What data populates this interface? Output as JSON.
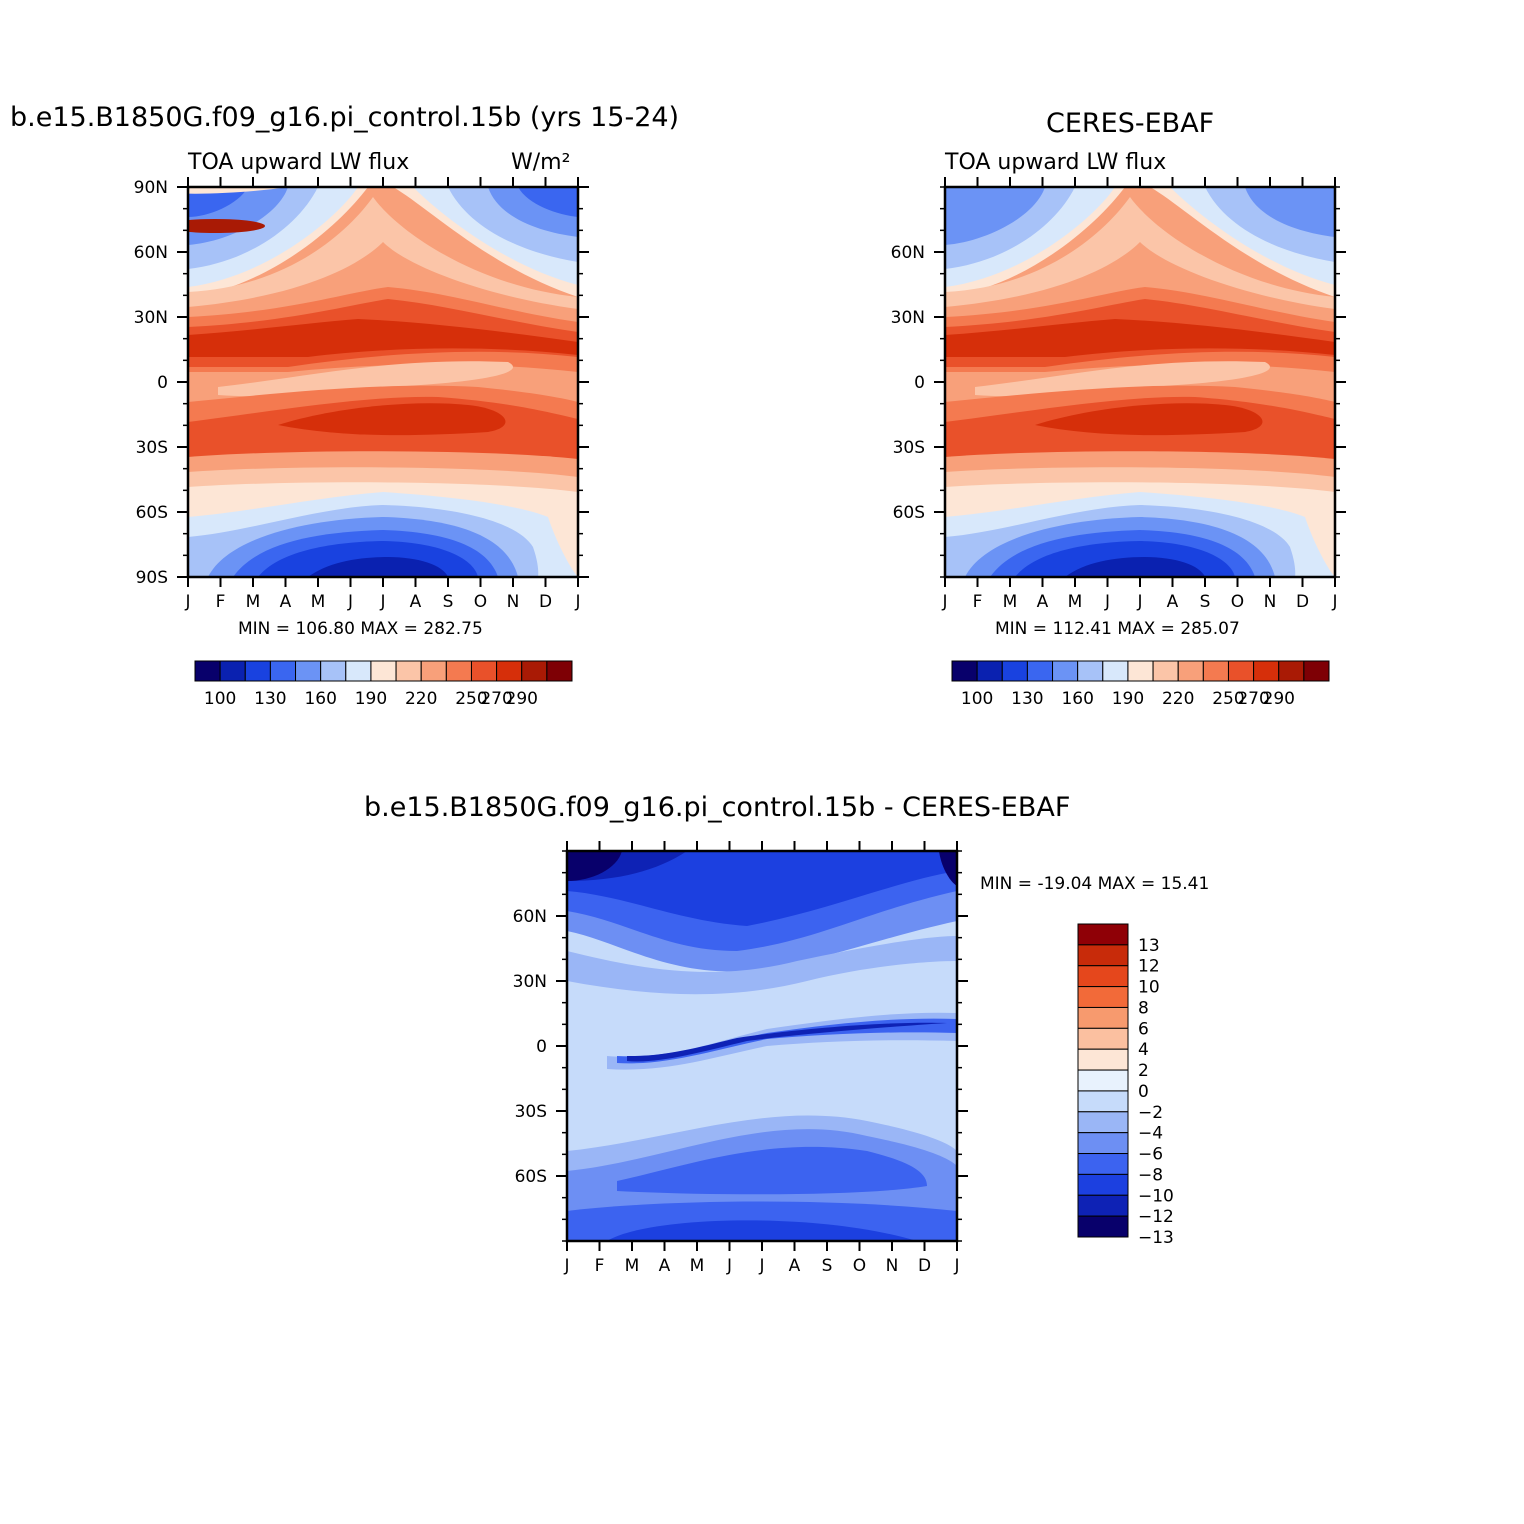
{
  "colors": {
    "abs_levels": [
      "#08006b",
      "#0a21b0",
      "#1942e0",
      "#3a66f0",
      "#6b93f5",
      "#a7c2f8",
      "#d8e8fb",
      "#fde6d6",
      "#fbc5a8",
      "#f8a07a",
      "#f47a50",
      "#e9512a",
      "#d62f0a",
      "#a91a05",
      "#7e0005"
    ],
    "diff_levels": [
      "#08006b",
      "#0e22b5",
      "#1c40e0",
      "#3c63f0",
      "#6d8ff3",
      "#9ab6f6",
      "#c6dbfa",
      "#e8f2fd",
      "#fde6d6",
      "#fbc0a0",
      "#f79a6e",
      "#f26a39",
      "#e5471c",
      "#c82b0a",
      "#8f0006"
    ]
  },
  "chart_data": [
    {
      "type": "heatmap",
      "name": "model",
      "title": "b.e15.B1850G.f09_g16.pi_control.15b (yrs 15-24)",
      "left_label": "TOA upward LW flux",
      "right_label": "W/m²",
      "x_ticks": [
        "J",
        "F",
        "M",
        "A",
        "M",
        "J",
        "J",
        "A",
        "S",
        "O",
        "N",
        "D",
        "J"
      ],
      "y_ticks": [
        "90N",
        "60N",
        "30N",
        "0",
        "30S",
        "60S",
        "90S"
      ],
      "stats": "MIN = 106.80 MAX = 282.75",
      "colorbar_labels": [
        "100",
        "130",
        "160",
        "190",
        "220",
        "250",
        "270",
        "290"
      ]
    },
    {
      "type": "heatmap",
      "name": "obs",
      "title": "CERES-EBAF",
      "left_label": "TOA upward LW flux",
      "x_ticks": [
        "J",
        "F",
        "M",
        "A",
        "M",
        "J",
        "J",
        "A",
        "S",
        "O",
        "N",
        "D",
        "J"
      ],
      "y_ticks": [
        "60N",
        "30N",
        "0",
        "30S",
        "60S"
      ],
      "stats": "MIN = 112.41 MAX = 285.07",
      "colorbar_labels": [
        "100",
        "130",
        "160",
        "190",
        "220",
        "250",
        "270",
        "290"
      ]
    },
    {
      "type": "heatmap",
      "name": "difference",
      "title": "b.e15.B1850G.f09_g16.pi_control.15b - CERES-EBAF",
      "x_ticks": [
        "J",
        "F",
        "M",
        "A",
        "M",
        "J",
        "J",
        "A",
        "S",
        "O",
        "N",
        "D",
        "J"
      ],
      "y_ticks": [
        "60N",
        "30N",
        "0",
        "30S",
        "60S"
      ],
      "stats": "MIN = -19.04 MAX = 15.41",
      "colorbar_labels": [
        "13",
        "12",
        "10",
        "8",
        "6",
        "4",
        "2",
        "0",
        "-2",
        "-4",
        "-6",
        "-8",
        "-10",
        "-12",
        "-13"
      ]
    }
  ]
}
